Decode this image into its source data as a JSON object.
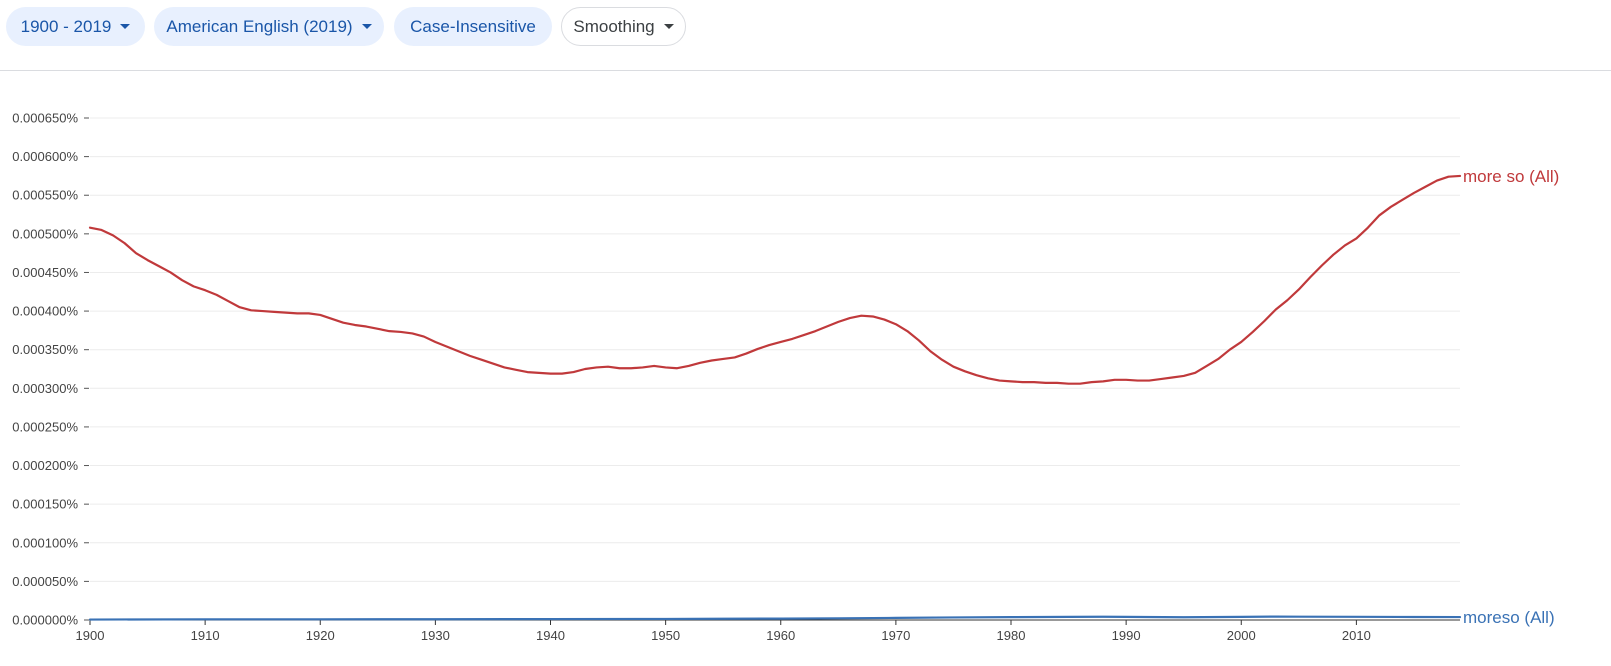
{
  "filters": {
    "year_range": "1900 - 2019",
    "corpus": "American English (2019)",
    "case": "Case-Insensitive",
    "smoothing": "Smoothing"
  },
  "chart_data": {
    "type": "line",
    "x_range": [
      1900,
      2019
    ],
    "ylim": [
      0,
      0.00065
    ],
    "y_ticks": [
      "0.000650%",
      "0.000600%",
      "0.000550%",
      "0.000500%",
      "0.000450%",
      "0.000400%",
      "0.000350%",
      "0.000300%",
      "0.000250%",
      "0.000200%",
      "0.000150%",
      "0.000100%",
      "0.000050%",
      "0.000000%"
    ],
    "x_ticks": [
      "1900",
      "1910",
      "1920",
      "1930",
      "1940",
      "1950",
      "1960",
      "1970",
      "1980",
      "1990",
      "2000",
      "2010"
    ],
    "grid": true,
    "series": [
      {
        "name": "more so (All)",
        "color": "#c0393b",
        "x": [
          1900,
          1901,
          1902,
          1903,
          1904,
          1905,
          1906,
          1907,
          1908,
          1909,
          1910,
          1911,
          1912,
          1913,
          1914,
          1915,
          1916,
          1917,
          1918,
          1919,
          1920,
          1921,
          1922,
          1923,
          1924,
          1925,
          1926,
          1927,
          1928,
          1929,
          1930,
          1931,
          1932,
          1933,
          1934,
          1935,
          1936,
          1937,
          1938,
          1939,
          1940,
          1941,
          1942,
          1943,
          1944,
          1945,
          1946,
          1947,
          1948,
          1949,
          1950,
          1951,
          1952,
          1953,
          1954,
          1955,
          1956,
          1957,
          1958,
          1959,
          1960,
          1961,
          1962,
          1963,
          1964,
          1965,
          1966,
          1967,
          1968,
          1969,
          1970,
          1971,
          1972,
          1973,
          1974,
          1975,
          1976,
          1977,
          1978,
          1979,
          1980,
          1981,
          1982,
          1983,
          1984,
          1985,
          1986,
          1987,
          1988,
          1989,
          1990,
          1991,
          1992,
          1993,
          1994,
          1995,
          1996,
          1997,
          1998,
          1999,
          2000,
          2001,
          2002,
          2003,
          2004,
          2005,
          2006,
          2007,
          2008,
          2009,
          2010,
          2011,
          2012,
          2013,
          2014,
          2015,
          2016,
          2017,
          2018,
          2019
        ],
        "values": [
          0.000508,
          0.000505,
          0.000498,
          0.000488,
          0.000475,
          0.000466,
          0.000458,
          0.00045,
          0.00044,
          0.000432,
          0.000427,
          0.000421,
          0.000413,
          0.000405,
          0.000401,
          0.0004,
          0.000399,
          0.000398,
          0.000397,
          0.000397,
          0.000395,
          0.00039,
          0.000385,
          0.000382,
          0.00038,
          0.000377,
          0.000374,
          0.000373,
          0.000371,
          0.000367,
          0.00036,
          0.000354,
          0.000348,
          0.000342,
          0.000337,
          0.000332,
          0.000327,
          0.000324,
          0.000321,
          0.00032,
          0.000319,
          0.000319,
          0.000321,
          0.000325,
          0.000327,
          0.000328,
          0.000326,
          0.000326,
          0.000327,
          0.000329,
          0.000327,
          0.000326,
          0.000329,
          0.000333,
          0.000336,
          0.000338,
          0.00034,
          0.000345,
          0.000351,
          0.000356,
          0.00036,
          0.000364,
          0.000369,
          0.000374,
          0.00038,
          0.000386,
          0.000391,
          0.000394,
          0.000393,
          0.000389,
          0.000383,
          0.000374,
          0.000362,
          0.000348,
          0.000337,
          0.000328,
          0.000322,
          0.000317,
          0.000313,
          0.00031,
          0.000309,
          0.000308,
          0.000308,
          0.000307,
          0.000307,
          0.000306,
          0.000306,
          0.000308,
          0.000309,
          0.000311,
          0.000311,
          0.00031,
          0.00031,
          0.000312,
          0.000314,
          0.000316,
          0.00032,
          0.000329,
          0.000338,
          0.00035,
          0.00036,
          0.000373,
          0.000387,
          0.000402,
          0.000414,
          0.000428,
          0.000444,
          0.000459,
          0.000473,
          0.000485,
          0.000494,
          0.000508,
          0.000524,
          0.000535,
          0.000544,
          0.000553,
          0.000561,
          0.000569,
          0.000574,
          0.000575
        ]
      },
      {
        "name": "moreso (All)",
        "color": "#3a72b5",
        "x": [
          1900,
          1910,
          1920,
          1930,
          1940,
          1950,
          1955,
          1960,
          1965,
          1970,
          1975,
          1980,
          1985,
          1988,
          1990,
          1995,
          2000,
          2003,
          2005,
          2010,
          2015,
          2019
        ],
        "values": [
          6e-07,
          9e-07,
          9e-07,
          1e-06,
          1.2e-06,
          1.4e-06,
          1.6e-06,
          1.8e-06,
          2.2e-06,
          2.7e-06,
          3.3e-06,
          3.7e-06,
          4e-06,
          4.2e-06,
          4e-06,
          3.6e-06,
          4e-06,
          4.4e-06,
          4.3e-06,
          4.1e-06,
          3.9e-06,
          3.8e-06
        ]
      }
    ]
  }
}
